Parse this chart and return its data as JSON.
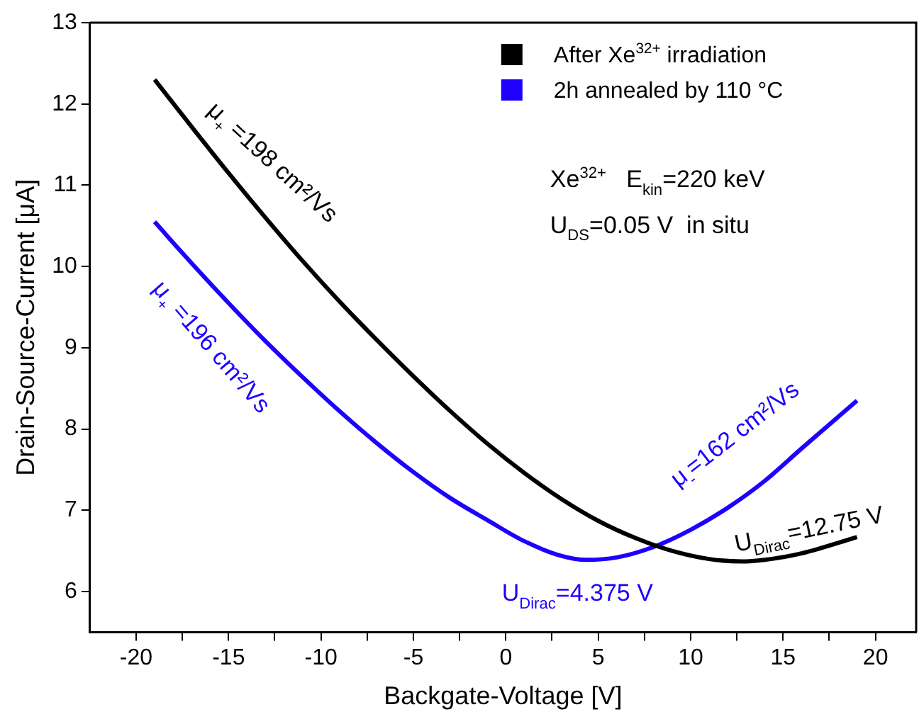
{
  "chart_data": {
    "type": "line",
    "xlabel": "Backgate-Voltage [V]",
    "ylabel": "Drain-Source-Current [μA]",
    "xlim": [
      -22.5,
      22.2
    ],
    "ylim": [
      5.5,
      13
    ],
    "xticks": [
      -20,
      {
        "value": -17.5,
        "label": null
      },
      -15,
      {
        "value": -12.5,
        "label": null
      },
      -10,
      {
        "value": -7.5,
        "label": null
      },
      -5,
      {
        "value": -2.5,
        "label": null
      },
      0,
      {
        "value": 2.5,
        "label": null
      },
      5,
      {
        "value": 7.5,
        "label": null
      },
      10,
      {
        "value": 12.5,
        "label": null
      },
      15,
      {
        "value": 17.5,
        "label": null
      },
      20
    ],
    "yticks": [
      6,
      7,
      8,
      9,
      10,
      11,
      12,
      13
    ],
    "grid": false,
    "legend": "top right",
    "marker": "none",
    "line_style": "solid",
    "series": [
      {
        "name": "After Xe$^{32+}$ irradiation",
        "color": "#000000",
        "x": [
          -19,
          -17,
          -15,
          -13,
          -11,
          -9,
          -7,
          -5,
          -3,
          -1,
          1,
          3,
          5,
          7,
          9,
          11,
          12.75,
          14,
          16,
          19
        ],
        "values": [
          12.3,
          11.72,
          11.15,
          10.6,
          10.07,
          9.57,
          9.1,
          8.65,
          8.22,
          7.82,
          7.46,
          7.14,
          6.87,
          6.66,
          6.5,
          6.4,
          6.37,
          6.39,
          6.47,
          6.67
        ]
      },
      {
        "name": "2h annealed by 110 °C",
        "color": "#1e00ff",
        "x": [
          -19,
          -17,
          -15,
          -13,
          -11,
          -9,
          -7,
          -5,
          -3,
          -1,
          1,
          3,
          4.375,
          6,
          8,
          10,
          12,
          14,
          16,
          19
        ],
        "values": [
          10.55,
          10.04,
          9.55,
          9.08,
          8.64,
          8.22,
          7.83,
          7.47,
          7.15,
          6.88,
          6.62,
          6.44,
          6.39,
          6.42,
          6.55,
          6.76,
          7.03,
          7.36,
          7.76,
          8.35
        ]
      }
    ],
    "annotations": [
      "μ$_{+}$ =198 cm²/Vs",
      "μ$_{+}$ =196 cm²/Vs",
      "μ$_{-}$=162 cm²/Vs",
      "U$_{Dirac}$=12.75 V",
      "U$_{Dirac}$=4.375 V",
      "Xe$^{32+}$   E$_{kin}$=220 keV",
      "U$_{DS}$=0.05 V  in situ"
    ]
  }
}
